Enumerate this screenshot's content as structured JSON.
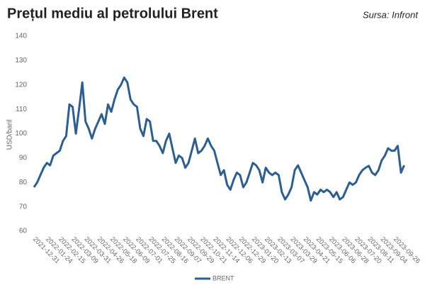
{
  "chart_data": {
    "type": "line",
    "title": "Prețul mediu al petrolului Brent",
    "source": "Sursa: Infront",
    "y_label": "USD/baril",
    "categories": [
      "2021-12-31",
      null,
      null,
      null,
      "2022-01-24",
      null,
      null,
      null,
      "2022-02-15",
      null,
      null,
      null,
      "2022-03-09",
      null,
      null,
      null,
      "2022-03-31",
      null,
      null,
      null,
      "2022-04-26",
      null,
      null,
      null,
      "2022-05-18",
      null,
      null,
      null,
      "2022-06-09",
      null,
      null,
      null,
      "2022-07-01",
      null,
      null,
      null,
      "2022-07-25",
      null,
      null,
      null,
      "2022-08-16",
      null,
      null,
      null,
      "2022-09-07",
      null,
      null,
      null,
      "2022-09-29",
      null,
      null,
      null,
      "2022-10-21",
      null,
      null,
      null,
      "2022-11-14",
      null,
      null,
      null,
      "2022-12-06",
      null,
      null,
      null,
      "2022-12-29",
      null,
      null,
      null,
      "2023-01-20",
      null,
      null,
      null,
      "2023-02-13",
      null,
      null,
      null,
      "2023-03-07",
      null,
      null,
      null,
      "2023-03-29",
      null,
      null,
      null,
      "2023-04-21",
      null,
      null,
      null,
      "2023-05-15",
      null,
      null,
      null,
      "2023-06-06",
      null,
      null,
      null,
      "2023-06-28",
      null,
      null,
      null,
      "2023-07-20",
      null,
      null,
      null,
      "2023-08-11",
      null,
      null,
      null,
      "2023-09-04",
      null,
      null,
      null,
      "2023-09-26",
      null,
      null,
      null
    ],
    "series": [
      {
        "name": "BRENT",
        "color": "#2c5f91",
        "values": [
          78,
          80,
          83,
          86,
          88,
          87,
          91,
          92,
          93,
          97,
          99,
          112,
          111,
          100,
          110,
          121,
          105,
          102,
          98,
          102,
          105,
          108,
          104,
          112,
          109,
          114,
          118,
          120,
          123,
          121,
          114,
          112,
          111,
          102,
          99,
          106,
          105,
          97,
          97,
          95,
          92,
          97,
          100,
          94,
          88,
          91,
          90,
          86,
          88,
          93,
          98,
          92,
          93,
          95,
          98,
          95,
          93,
          88,
          83,
          85,
          79,
          77,
          81,
          84,
          83,
          78,
          80,
          84,
          88,
          87,
          85,
          80,
          86,
          84,
          83,
          84,
          83,
          76,
          73,
          75,
          78,
          85,
          87,
          84,
          81,
          78,
          72.5,
          76,
          75,
          77,
          76,
          77,
          76,
          74,
          76,
          73,
          74,
          77,
          80,
          79,
          80,
          83,
          85,
          86,
          86.8,
          84,
          83,
          85,
          89,
          91,
          94,
          93,
          93,
          95,
          84,
          87
        ]
      }
    ],
    "ylim": [
      60,
      140
    ],
    "yticks": [
      60,
      70,
      80,
      90,
      100,
      110,
      120,
      130,
      140
    ],
    "grid": false,
    "legend": "bottom"
  }
}
